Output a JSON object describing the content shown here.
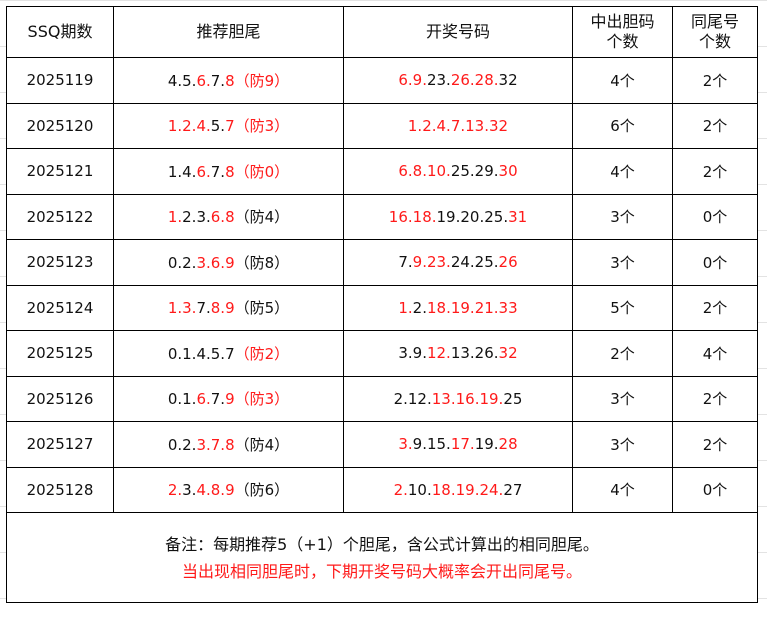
{
  "headers": [
    "SSQ期数",
    "推荐胆尾",
    "开奖号码",
    "中出胆码\n个数",
    "同尾号\n个数"
  ],
  "colors": {
    "highlight": "#ff1a1a",
    "text": "#111111"
  },
  "rows": [
    {
      "issue": "2025119",
      "rec": [
        [
          "4.5.",
          0
        ],
        [
          "6.",
          1
        ],
        [
          "7.",
          0
        ],
        [
          "8（防9）",
          1
        ]
      ],
      "draw": [
        [
          "6.9.",
          1
        ],
        [
          "23.",
          0
        ],
        [
          "26.28.",
          1
        ],
        [
          "32",
          0
        ]
      ],
      "hits": "4个",
      "same_tail": "2个"
    },
    {
      "issue": "2025120",
      "rec": [
        [
          "1.2.4.",
          1
        ],
        [
          "5.",
          0
        ],
        [
          "7（防3）",
          1
        ]
      ],
      "draw": [
        [
          "1.2.4.7.13.32",
          1
        ]
      ],
      "hits": "6个",
      "same_tail": "2个"
    },
    {
      "issue": "2025121",
      "rec": [
        [
          "1.4.",
          0
        ],
        [
          "6.",
          1
        ],
        [
          "7.",
          0
        ],
        [
          "8（防0）",
          1
        ]
      ],
      "draw": [
        [
          "6.8.10.",
          1
        ],
        [
          "25.29.",
          0
        ],
        [
          "30",
          1
        ]
      ],
      "hits": "4个",
      "same_tail": "2个"
    },
    {
      "issue": "2025122",
      "rec": [
        [
          "1.",
          1
        ],
        [
          "2.3.",
          0
        ],
        [
          "6.8",
          1
        ],
        [
          "（防4）",
          0
        ]
      ],
      "draw": [
        [
          "16.18.",
          1
        ],
        [
          "19.20.25.",
          0
        ],
        [
          "31",
          1
        ]
      ],
      "hits": "3个",
      "same_tail": "0个"
    },
    {
      "issue": "2025123",
      "rec": [
        [
          "0.2.",
          0
        ],
        [
          "3.6.9",
          1
        ],
        [
          "（防8）",
          0
        ]
      ],
      "draw": [
        [
          "7.",
          0
        ],
        [
          "9.23.",
          1
        ],
        [
          "24.25.",
          0
        ],
        [
          "26",
          1
        ]
      ],
      "hits": "3个",
      "same_tail": "0个"
    },
    {
      "issue": "2025124",
      "rec": [
        [
          "1.3.",
          1
        ],
        [
          "7.",
          0
        ],
        [
          "8.9",
          1
        ],
        [
          "（防5）",
          0
        ]
      ],
      "draw": [
        [
          "1.",
          1
        ],
        [
          "2.",
          0
        ],
        [
          "18.19.21.33",
          1
        ]
      ],
      "hits": "5个",
      "same_tail": "2个"
    },
    {
      "issue": "2025125",
      "rec": [
        [
          "0.1.4.5.7",
          0
        ],
        [
          "（防2）",
          1
        ]
      ],
      "draw": [
        [
          "3.9.",
          0
        ],
        [
          "12.",
          1
        ],
        [
          "13.26.",
          0
        ],
        [
          "32",
          1
        ]
      ],
      "hits": "2个",
      "same_tail": "4个"
    },
    {
      "issue": "2025126",
      "rec": [
        [
          "0.1.",
          0
        ],
        [
          "6.",
          1
        ],
        [
          "7.",
          0
        ],
        [
          "9（防3）",
          1
        ]
      ],
      "draw": [
        [
          "2.12.",
          0
        ],
        [
          "13.16.19.",
          1
        ],
        [
          "25",
          0
        ]
      ],
      "hits": "3个",
      "same_tail": "2个"
    },
    {
      "issue": "2025127",
      "rec": [
        [
          "0.2.",
          0
        ],
        [
          "3.7.8",
          1
        ],
        [
          "（防4）",
          0
        ]
      ],
      "draw": [
        [
          "3.",
          1
        ],
        [
          "9.15.",
          0
        ],
        [
          "17.",
          1
        ],
        [
          "19.",
          0
        ],
        [
          "28",
          1
        ]
      ],
      "hits": "3个",
      "same_tail": "2个"
    },
    {
      "issue": "2025128",
      "rec": [
        [
          "2.",
          1
        ],
        [
          "3.",
          0
        ],
        [
          "4.8.9",
          1
        ],
        [
          "（防6）",
          0
        ]
      ],
      "draw": [
        [
          "2.",
          1
        ],
        [
          "10.",
          0
        ],
        [
          "18.19.24.",
          1
        ],
        [
          "27",
          0
        ]
      ],
      "hits": "4个",
      "same_tail": "0个"
    }
  ],
  "note": {
    "line1": "备注：每期推荐5（+1）个胆尾，含公式计算出的相同胆尾。",
    "line2": "当出现相同胆尾时，下期开奖号码大概率会开出同尾号。"
  }
}
